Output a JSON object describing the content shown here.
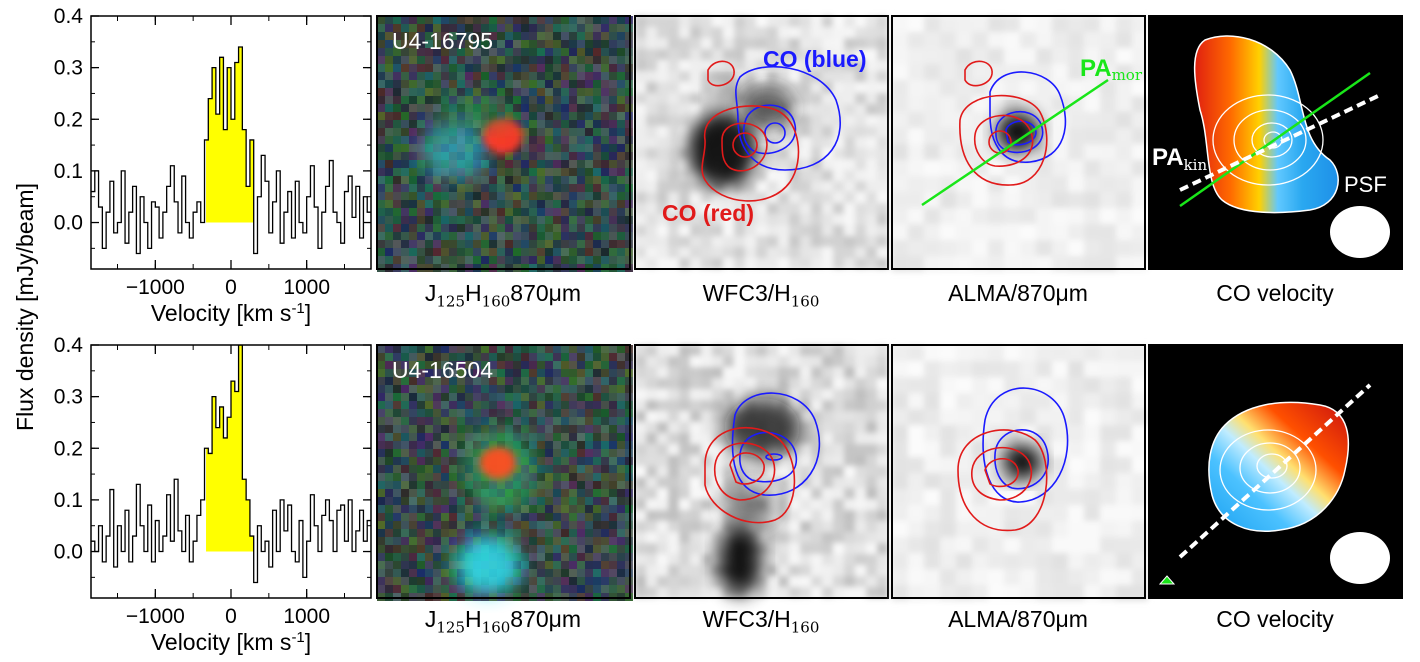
{
  "chart_data": [
    {
      "type": "line",
      "object": "U4-16795",
      "xlabel": "Velocity [km s-1]",
      "ylabel": "Flux density [mJy/beam]",
      "xlim": [
        -1850,
        1850
      ],
      "ylim": [
        -0.09,
        0.4
      ],
      "xticks": [
        -1000,
        0,
        1000
      ],
      "yticks": [
        0.0,
        0.1,
        0.2,
        0.3,
        0.4
      ],
      "highlight_range_kms": [
        -330,
        300
      ],
      "highlight_color": "#ffff00",
      "x": [
        -1850,
        -1800,
        -1750,
        -1700,
        -1650,
        -1600,
        -1550,
        -1500,
        -1450,
        -1400,
        -1350,
        -1300,
        -1250,
        -1200,
        -1150,
        -1100,
        -1050,
        -1000,
        -950,
        -900,
        -850,
        -800,
        -750,
        -700,
        -650,
        -600,
        -550,
        -500,
        -450,
        -400,
        -350,
        -300,
        -250,
        -200,
        -150,
        -100,
        -50,
        0,
        50,
        100,
        150,
        200,
        250,
        300,
        350,
        400,
        450,
        500,
        550,
        600,
        650,
        700,
        750,
        800,
        850,
        900,
        950,
        1000,
        1050,
        1100,
        1150,
        1200,
        1250,
        1300,
        1350,
        1400,
        1450,
        1500,
        1550,
        1600,
        1650,
        1700,
        1750,
        1800
      ],
      "values": [
        0.06,
        0.1,
        0.03,
        -0.05,
        0.02,
        0.08,
        -0.02,
        0.0,
        0.1,
        -0.04,
        0.02,
        0.07,
        -0.06,
        0.05,
        0.0,
        -0.05,
        0.04,
        0.03,
        -0.03,
        0.02,
        0.07,
        0.11,
        0.04,
        -0.02,
        0.09,
        0.0,
        -0.03,
        0.02,
        0.04,
        0.0,
        0.16,
        0.24,
        0.3,
        0.21,
        0.32,
        0.18,
        0.3,
        0.2,
        0.31,
        0.34,
        0.18,
        0.07,
        0.16,
        -0.06,
        0.05,
        0.13,
        0.08,
        -0.02,
        0.04,
        0.1,
        -0.04,
        0.02,
        0.06,
        -0.03,
        0.08,
        0.0,
        -0.02,
        0.05,
        0.11,
        0.03,
        -0.05,
        0.02,
        0.07,
        0.12,
        0.02,
        0.0,
        -0.04,
        0.06,
        0.09,
        0.01,
        0.07,
        -0.03,
        0.05,
        0.02
      ]
    },
    {
      "type": "line",
      "object": "U4-16504",
      "xlabel": "Velocity [km s-1]",
      "ylabel": "Flux density [mJy/beam]",
      "xlim": [
        -1850,
        1850
      ],
      "ylim": [
        -0.09,
        0.4
      ],
      "xticks": [
        -1000,
        0,
        1000
      ],
      "yticks": [
        0.0,
        0.1,
        0.2,
        0.3,
        0.4
      ],
      "highlight_range_kms": [
        -330,
        300
      ],
      "highlight_color": "#ffff00",
      "x": [
        -1850,
        -1800,
        -1750,
        -1700,
        -1650,
        -1600,
        -1550,
        -1500,
        -1450,
        -1400,
        -1350,
        -1300,
        -1250,
        -1200,
        -1150,
        -1100,
        -1050,
        -1000,
        -950,
        -900,
        -850,
        -800,
        -750,
        -700,
        -650,
        -600,
        -550,
        -500,
        -450,
        -400,
        -350,
        -300,
        -250,
        -200,
        -150,
        -100,
        -50,
        0,
        50,
        100,
        150,
        200,
        250,
        300,
        350,
        400,
        450,
        500,
        550,
        600,
        650,
        700,
        750,
        800,
        850,
        900,
        950,
        1000,
        1050,
        1100,
        1150,
        1200,
        1250,
        1300,
        1350,
        1400,
        1450,
        1500,
        1550,
        1600,
        1650,
        1700,
        1750,
        1800
      ],
      "values": [
        0.02,
        0.0,
        0.05,
        -0.02,
        0.03,
        0.12,
        -0.03,
        0.05,
        0.0,
        0.08,
        -0.02,
        0.03,
        0.13,
        0.05,
        0.0,
        0.09,
        -0.02,
        0.06,
        0.0,
        0.03,
        0.11,
        0.02,
        0.14,
        0.04,
        0.0,
        0.07,
        -0.02,
        0.02,
        0.07,
        0.1,
        0.2,
        0.19,
        0.3,
        0.24,
        0.28,
        0.22,
        0.26,
        0.33,
        0.31,
        0.4,
        0.14,
        0.1,
        0.03,
        -0.06,
        0.05,
        0.0,
        0.02,
        -0.03,
        0.08,
        0.0,
        0.1,
        0.04,
        0.09,
        0.0,
        -0.02,
        0.06,
        -0.05,
        0.02,
        0.11,
        0.05,
        0.0,
        0.07,
        0.1,
        0.06,
        0.0,
        0.08,
        0.09,
        0.02,
        0.1,
        0.0,
        0.04,
        0.08,
        0.02,
        0.06
      ]
    }
  ],
  "rows": [
    {
      "object_label": "U4-16795",
      "co_blue_label": "CO (blue)",
      "co_red_label": "CO (red)",
      "pa_mor_label": "PA",
      "pa_mor_sub": "mor",
      "pa_kin_label": "PA",
      "pa_kin_sub": "kin",
      "psf_label": "PSF"
    },
    {
      "object_label": "U4-16504"
    }
  ],
  "captions": {
    "rgb_a": "J",
    "rgb_a_sub": "125",
    "rgb_b": "H",
    "rgb_b_sub": "160",
    "rgb_c": "870μm",
    "wfc3": "WFC3/H",
    "wfc3_sub": "160",
    "alma": "ALMA/870μm",
    "co_velocity": "CO velocity"
  },
  "colors": {
    "co_blue": "#1a1aff",
    "co_red": "#e11a1a",
    "pa_mor": "#19e619",
    "highlight": "#ffff00"
  }
}
